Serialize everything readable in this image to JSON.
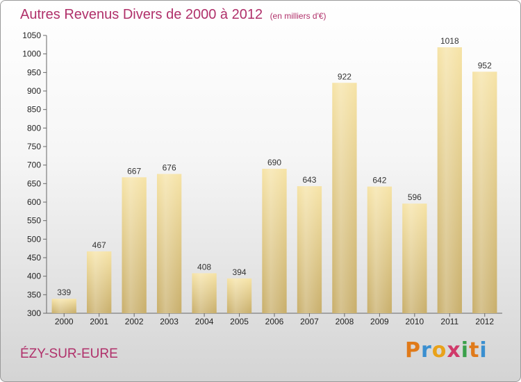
{
  "title": "Autres Revenus Divers de 2000 à 2012",
  "unit": "(en milliers d'€)",
  "place": "ÉZY-SUR-EURE",
  "logo": {
    "letters": [
      "P",
      "r",
      "o",
      "x",
      "i",
      "t",
      "i"
    ],
    "colors": [
      "#e07a1a",
      "#3a8fd0",
      "#e9a21a",
      "#d03a6a",
      "#3aa04a",
      "#e07a1a",
      "#3a8fd0"
    ]
  },
  "colors": {
    "bar_top": "#f6e3a6",
    "bar_bottom": "#c8ae6a",
    "title": "#b0306a"
  },
  "chart_data": {
    "type": "bar",
    "title": "Autres Revenus Divers de 2000 à 2012",
    "xlabel": "",
    "ylabel": "",
    "categories": [
      "2000",
      "2001",
      "2002",
      "2003",
      "2004",
      "2005",
      "2006",
      "2007",
      "2008",
      "2009",
      "2010",
      "2011",
      "2012"
    ],
    "values": [
      339,
      467,
      667,
      676,
      408,
      394,
      690,
      643,
      922,
      642,
      596,
      1018,
      952
    ],
    "data_labels": [
      "339",
      "467",
      "667",
      "676",
      "408",
      "394",
      "690",
      "643",
      "922",
      "642",
      "596",
      "1018",
      "952"
    ],
    "ylim": [
      300,
      1050
    ],
    "yticks": [
      300,
      350,
      400,
      450,
      500,
      550,
      600,
      650,
      700,
      750,
      800,
      850,
      900,
      950,
      1000,
      1050
    ],
    "grid": false,
    "legend": "none"
  }
}
